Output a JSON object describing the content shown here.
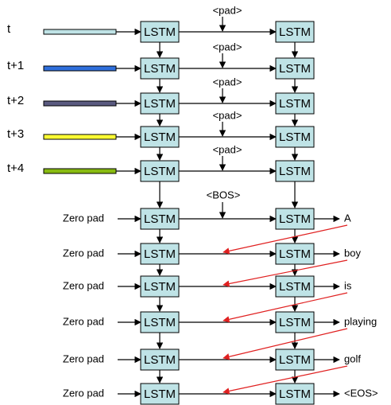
{
  "colors": {
    "box_fill": "#bfe3e6",
    "box_stroke": "#000000",
    "arrow": "#000000",
    "feedback_arrow": "#e02020"
  },
  "encoder": {
    "steps": [
      {
        "label": "t",
        "bar_color": "#bfe3e6",
        "pad": "<pad>",
        "lstm_left": "LSTM",
        "lstm_right": "LSTM"
      },
      {
        "label": "t+1",
        "bar_color": "#2f6fdc",
        "pad": "<pad>",
        "lstm_left": "LSTM",
        "lstm_right": "LSTM"
      },
      {
        "label": "t+2",
        "bar_color": "#5a5a80",
        "pad": "<pad>",
        "lstm_left": "LSTM",
        "lstm_right": "LSTM"
      },
      {
        "label": "t+3",
        "bar_color": "#ffff33",
        "pad": "<pad>",
        "lstm_left": "LSTM",
        "lstm_right": "LSTM"
      },
      {
        "label": "t+4",
        "bar_color": "#88bb11",
        "pad": "<pad>",
        "lstm_left": "LSTM",
        "lstm_right": "LSTM"
      }
    ]
  },
  "decoder": {
    "bos": "<BOS>",
    "steps": [
      {
        "input": "Zero pad",
        "lstm_left": "LSTM",
        "lstm_right": "LSTM",
        "output": "A"
      },
      {
        "input": "Zero pad",
        "lstm_left": "LSTM",
        "lstm_right": "LSTM",
        "output": "boy"
      },
      {
        "input": "Zero pad",
        "lstm_left": "LSTM",
        "lstm_right": "LSTM",
        "output": "is"
      },
      {
        "input": "Zero pad",
        "lstm_left": "LSTM",
        "lstm_right": "LSTM",
        "output": "playing"
      },
      {
        "input": "Zero pad",
        "lstm_left": "LSTM",
        "lstm_right": "LSTM",
        "output": "golf"
      },
      {
        "input": "Zero pad",
        "lstm_left": "LSTM",
        "lstm_right": "LSTM",
        "output": "<EOS>"
      }
    ]
  }
}
